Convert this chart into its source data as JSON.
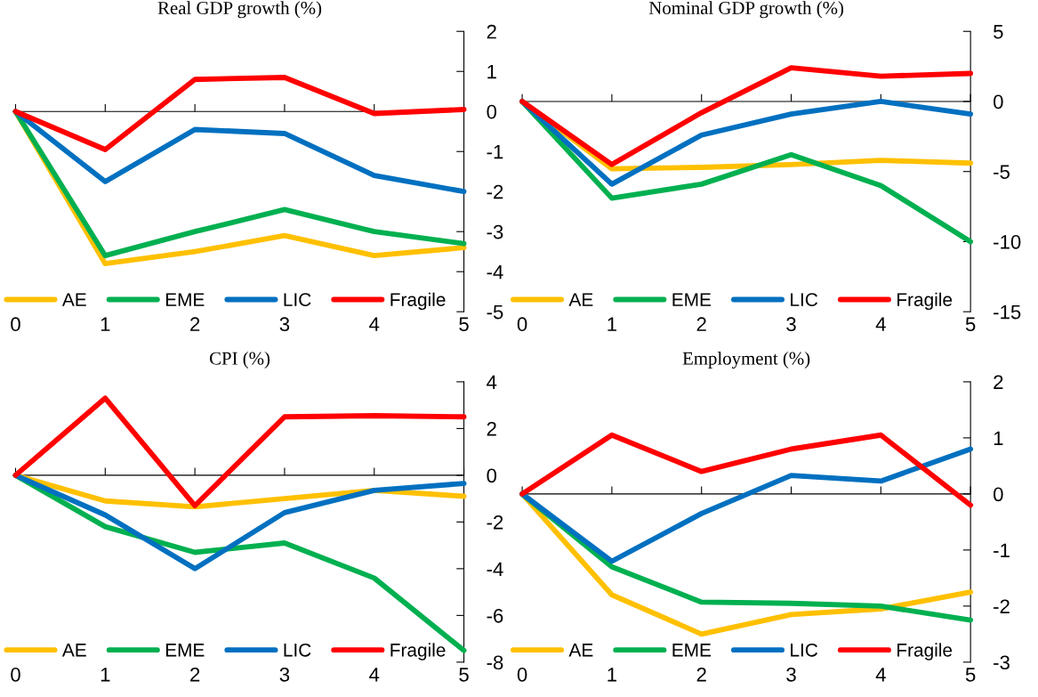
{
  "chart_data": [
    {
      "type": "line",
      "title": "Real GDP growth (%)",
      "x": [
        0,
        1,
        2,
        3,
        4,
        5
      ],
      "xlim": [
        0,
        5
      ],
      "xticks": [
        0,
        1,
        2,
        3,
        4,
        5
      ],
      "ylim": [
        -5,
        2
      ],
      "yticks": [
        -5,
        -4,
        -3,
        -2,
        -1,
        0,
        1,
        2
      ],
      "legend": "bottom",
      "series": [
        {
          "name": "AE",
          "color": "#ffc000",
          "values": [
            0,
            -3.8,
            -3.5,
            -3.1,
            -3.6,
            -3.4
          ]
        },
        {
          "name": "EME",
          "color": "#00b050",
          "values": [
            0,
            -3.6,
            -3.0,
            -2.45,
            -3.0,
            -3.3
          ]
        },
        {
          "name": "LIC",
          "color": "#0070c0",
          "values": [
            0,
            -1.75,
            -0.45,
            -0.55,
            -1.6,
            -2.0
          ]
        },
        {
          "name": "Fragile",
          "color": "#ff0000",
          "values": [
            0,
            -0.95,
            0.8,
            0.85,
            -0.05,
            0.05
          ]
        }
      ]
    },
    {
      "type": "line",
      "title": "Nominal GDP growth (%)",
      "x": [
        0,
        1,
        2,
        3,
        4,
        5
      ],
      "xlim": [
        0,
        5
      ],
      "xticks": [
        0,
        1,
        2,
        3,
        4,
        5
      ],
      "ylim": [
        -15,
        5
      ],
      "yticks": [
        -15,
        -10,
        -5,
        0,
        5
      ],
      "legend": "bottom",
      "series": [
        {
          "name": "AE",
          "color": "#ffc000",
          "values": [
            0,
            -4.8,
            -4.7,
            -4.5,
            -4.2,
            -4.4
          ]
        },
        {
          "name": "EME",
          "color": "#00b050",
          "values": [
            0,
            -6.9,
            -5.9,
            -3.8,
            -6.0,
            -10.0
          ]
        },
        {
          "name": "LIC",
          "color": "#0070c0",
          "values": [
            0,
            -5.9,
            -2.4,
            -0.9,
            0,
            -0.9
          ]
        },
        {
          "name": "Fragile",
          "color": "#ff0000",
          "values": [
            0,
            -4.5,
            -0.8,
            2.4,
            1.8,
            2.0
          ]
        }
      ]
    },
    {
      "type": "line",
      "title": "CPI (%)",
      "x": [
        0,
        1,
        2,
        3,
        4,
        5
      ],
      "xlim": [
        0,
        5
      ],
      "xticks": [
        0,
        1,
        2,
        3,
        4,
        5
      ],
      "ylim": [
        -8,
        4
      ],
      "yticks": [
        -8,
        -6,
        -4,
        -2,
        0,
        2,
        4
      ],
      "legend": "bottom",
      "series": [
        {
          "name": "AE",
          "color": "#ffc000",
          "values": [
            0,
            -1.1,
            -1.35,
            -1.0,
            -0.65,
            -0.9
          ]
        },
        {
          "name": "EME",
          "color": "#00b050",
          "values": [
            0,
            -2.2,
            -3.3,
            -2.9,
            -4.4,
            -7.5
          ]
        },
        {
          "name": "LIC",
          "color": "#0070c0",
          "values": [
            0,
            -1.7,
            -4.0,
            -1.6,
            -0.65,
            -0.35
          ]
        },
        {
          "name": "Fragile",
          "color": "#ff0000",
          "values": [
            0,
            3.3,
            -1.3,
            2.5,
            2.55,
            2.5
          ]
        }
      ]
    },
    {
      "type": "line",
      "title": "Employment (%)",
      "x": [
        0,
        1,
        2,
        3,
        4,
        5
      ],
      "xlim": [
        0,
        5
      ],
      "xticks": [
        0,
        1,
        2,
        3,
        4,
        5
      ],
      "ylim": [
        -3,
        2
      ],
      "yticks": [
        -3,
        -2,
        -1,
        0,
        1,
        2
      ],
      "legend": "bottom",
      "series": [
        {
          "name": "AE",
          "color": "#ffc000",
          "values": [
            0,
            -1.8,
            -2.5,
            -2.15,
            -2.05,
            -1.75
          ]
        },
        {
          "name": "EME",
          "color": "#00b050",
          "values": [
            0,
            -1.3,
            -1.93,
            -1.95,
            -2.0,
            -2.25
          ]
        },
        {
          "name": "LIC",
          "color": "#0070c0",
          "values": [
            0,
            -1.2,
            -0.35,
            0.33,
            0.23,
            0.8
          ]
        },
        {
          "name": "Fragile",
          "color": "#ff0000",
          "values": [
            0,
            1.05,
            0.4,
            0.8,
            1.05,
            -0.2
          ]
        }
      ]
    }
  ]
}
